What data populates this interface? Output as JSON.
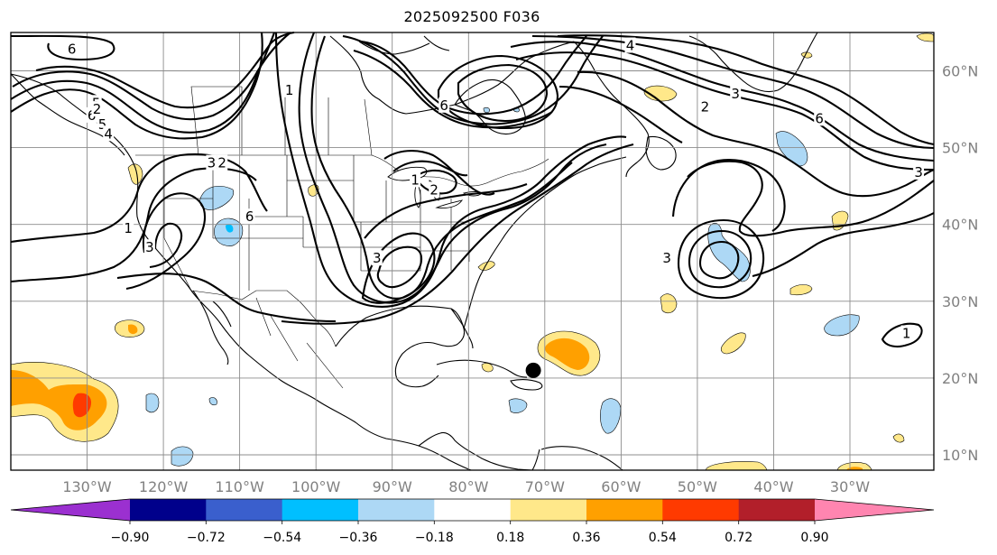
{
  "title": "2025092500 F036",
  "map": {
    "projection": "Plate Carree",
    "extent": {
      "lon": [
        -140,
        -19
      ],
      "lat": [
        8,
        65
      ]
    },
    "lat_ticks": [
      {
        "value": 10,
        "label": "10°N"
      },
      {
        "value": 20,
        "label": "20°N"
      },
      {
        "value": 30,
        "label": "30°N"
      },
      {
        "value": 40,
        "label": "40°N"
      },
      {
        "value": 50,
        "label": "50°N"
      },
      {
        "value": 60,
        "label": "60°N"
      }
    ],
    "lon_ticks": [
      {
        "value": -130,
        "label": "130°W"
      },
      {
        "value": -120,
        "label": "120°W"
      },
      {
        "value": -110,
        "label": "110°W"
      },
      {
        "value": -100,
        "label": "100°W"
      },
      {
        "value": -90,
        "label": "90°W"
      },
      {
        "value": -80,
        "label": "80°W"
      },
      {
        "value": -70,
        "label": "70°W"
      },
      {
        "value": -60,
        "label": "60°W"
      },
      {
        "value": -50,
        "label": "50°W"
      },
      {
        "value": -40,
        "label": "40°W"
      },
      {
        "value": -30,
        "label": "30°W"
      }
    ],
    "marker": {
      "lon": -71.5,
      "lat": 21.0,
      "color": "#000000"
    },
    "contour_labels": [
      {
        "text": "6",
        "lon": -132.0,
        "lat": 62.8
      },
      {
        "text": "6",
        "lon": -129.4,
        "lat": 54.2
      },
      {
        "text": "5",
        "lon": -128.0,
        "lat": 53.0
      },
      {
        "text": "5",
        "lon": -128.8,
        "lat": 55.8
      },
      {
        "text": "4",
        "lon": -127.2,
        "lat": 51.8
      },
      {
        "text": "2",
        "lon": -128.7,
        "lat": 55.0
      },
      {
        "text": "3",
        "lon": -113.7,
        "lat": 48.0
      },
      {
        "text": "2",
        "lon": -112.3,
        "lat": 48.0
      },
      {
        "text": "1",
        "lon": -124.6,
        "lat": 39.5
      },
      {
        "text": "3",
        "lon": -121.8,
        "lat": 37.0
      },
      {
        "text": "6",
        "lon": -108.7,
        "lat": 41.0
      },
      {
        "text": "1",
        "lon": -103.5,
        "lat": 57.5
      },
      {
        "text": "6",
        "lon": -83.2,
        "lat": 55.5
      },
      {
        "text": "1",
        "lon": -87.0,
        "lat": 45.8
      },
      {
        "text": "2",
        "lon": -84.5,
        "lat": 44.5
      },
      {
        "text": "3",
        "lon": -92.0,
        "lat": 35.6
      },
      {
        "text": "4",
        "lon": -58.8,
        "lat": 63.3
      },
      {
        "text": "2",
        "lon": -49.0,
        "lat": 55.3
      },
      {
        "text": "3",
        "lon": -45.0,
        "lat": 57.0
      },
      {
        "text": "6",
        "lon": -34.0,
        "lat": 53.8
      },
      {
        "text": "3",
        "lon": -21.0,
        "lat": 46.8
      },
      {
        "text": "3",
        "lon": -54.0,
        "lat": 35.6
      },
      {
        "text": "1",
        "lon": -22.6,
        "lat": 25.8
      }
    ],
    "legend_note": ""
  },
  "colorbar": {
    "colors": [
      "#9b30d0",
      "#00008b",
      "#3a5fcd",
      "#00bfff",
      "#add8f5",
      "#ffffff",
      "#ffe88a",
      "#ffa000",
      "#ff3a00",
      "#b21f2a",
      "#ff85b0"
    ],
    "ticks": [
      "−0.90",
      "−0.72",
      "−0.54",
      "−0.36",
      "−0.18",
      "0.18",
      "0.36",
      "0.54",
      "0.72",
      "0.90"
    ],
    "extend": "both"
  }
}
